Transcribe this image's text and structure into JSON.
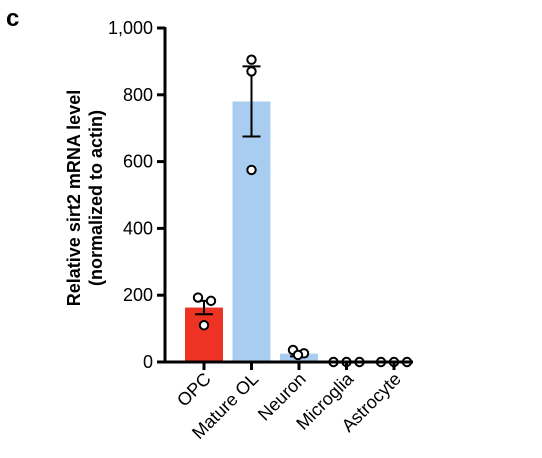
{
  "panel_label": "c",
  "chart_data": {
    "type": "bar",
    "ylabel_line1": "Relative sirt2 mRNA level",
    "ylabel_line2": "(normalized to actin)",
    "ylim": [
      0,
      1000
    ],
    "yticks": [
      0,
      200,
      400,
      600,
      800,
      1000
    ],
    "ytick_labels": [
      "0",
      "200",
      "400",
      "600",
      "800",
      "1,000"
    ],
    "categories": [
      "OPC",
      "Mature OL",
      "Neuron",
      "Microglia",
      "Astrocyte"
    ],
    "values": [
      163,
      780,
      25,
      1,
      1
    ],
    "errors": [
      20,
      105,
      8,
      0,
      0
    ],
    "points": [
      [
        193,
        183,
        110
      ],
      [
        905,
        870,
        575
      ],
      [
        36,
        26,
        21
      ],
      [
        0,
        0,
        0
      ],
      [
        0,
        0,
        0
      ]
    ],
    "bar_colors": [
      "#ee3223",
      "#a8cdf1",
      "#a8cdf1",
      "#a8cdf1",
      "#a8cdf1"
    ]
  }
}
